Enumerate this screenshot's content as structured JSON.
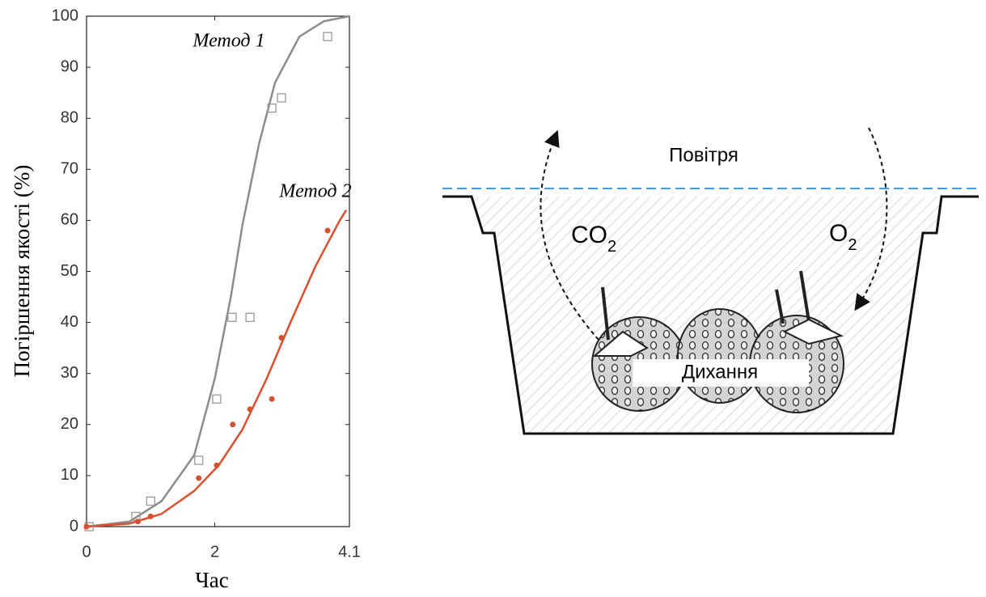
{
  "chart_data": {
    "type": "scatter",
    "xlabel": "Час",
    "ylabel": "Погіршення якості (%)",
    "xlim": [
      0,
      4.1
    ],
    "xticks": [
      0,
      2,
      4.1
    ],
    "ylim": [
      0,
      100
    ],
    "yticks": [
      0,
      10,
      20,
      30,
      40,
      50,
      60,
      70,
      80,
      90,
      100
    ],
    "grid": false,
    "series": [
      {
        "type": "line",
        "name": "Метод 1",
        "color": "#8c8c8c",
        "x": [
          0,
          0.67,
          1.17,
          1.68,
          2.0,
          2.25,
          2.43,
          2.69,
          2.94,
          3.32,
          3.7,
          4.1
        ],
        "values": [
          0,
          1,
          5,
          14,
          29,
          45,
          59,
          75,
          87,
          96,
          99,
          100
        ]
      },
      {
        "type": "line",
        "name": "Метод 2",
        "color": "#d9502f",
        "x": [
          0,
          0.67,
          1.17,
          1.68,
          2.06,
          2.43,
          2.81,
          3.18,
          3.57,
          3.95,
          4.05
        ],
        "values": [
          0,
          0.6,
          2.5,
          7,
          12,
          19,
          29,
          40,
          51,
          60,
          62
        ]
      },
      {
        "type": "scatter",
        "marker": "square",
        "color": "#999999",
        "x": [
          0.04,
          0.77,
          1.0,
          1.75,
          2.03,
          2.27,
          2.55,
          2.89,
          3.04,
          3.76
        ],
        "values": [
          0,
          2,
          5,
          13,
          25,
          41,
          41,
          82,
          84,
          96
        ]
      },
      {
        "type": "scatter",
        "marker": "dot",
        "color": "#d9502f",
        "x": [
          0,
          0.8,
          1.0,
          1.75,
          2.03,
          2.28,
          2.55,
          2.89,
          3.04,
          3.76
        ],
        "values": [
          0,
          1,
          2,
          9.5,
          12,
          20,
          23,
          25,
          37,
          58
        ]
      }
    ]
  },
  "diagram": {
    "air": "Повітря",
    "co2": {
      "text": "CO",
      "sub": "2"
    },
    "o2": {
      "text": "O",
      "sub": "2"
    },
    "respiration": "Дихання"
  }
}
